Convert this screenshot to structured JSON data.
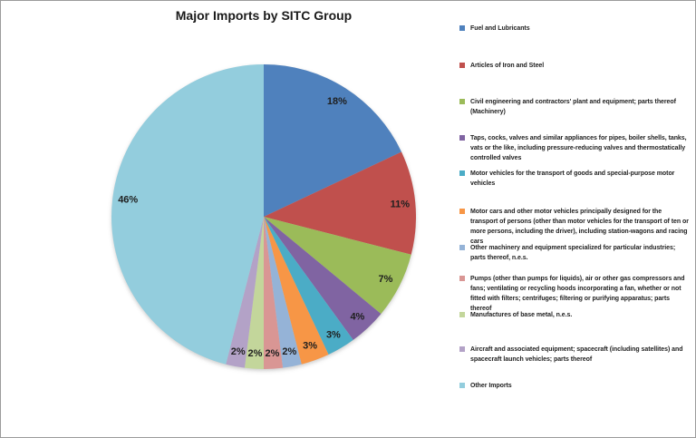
{
  "title": "Major Imports by SITC Group",
  "chart_data": {
    "type": "pie",
    "title": "Major Imports by SITC Group",
    "legend_position": "right",
    "value_label_style": "percent-inside-end",
    "slices": [
      {
        "label": "Fuel and Lubricants",
        "value": 18,
        "value_label": "18%",
        "color": "#4F81BD"
      },
      {
        "label": "Articles of Iron and Steel",
        "value": 11,
        "value_label": "11%",
        "color": "#C0504D"
      },
      {
        "label": "Civil engineering and contractors' plant and equipment; parts thereof (Machinery)",
        "value": 7,
        "value_label": "7%",
        "color": "#9BBB59"
      },
      {
        "label": "Taps, cocks, valves and similar appliances for pipes, boiler shells, tanks, vats or the like, including pressure-reducing valves and thermostatically controlled valves",
        "value": 4,
        "value_label": "4%",
        "color": "#8064A2"
      },
      {
        "label": "Motor vehicles for the transport of goods and special-purpose motor vehicles",
        "value": 3,
        "value_label": "3%",
        "color": "#4BACC6"
      },
      {
        "label": "Motor cars and other motor vehicles principally designed for the transport of persons (other than motor vehicles for the transport of ten or more persons, including the driver), including station-wagons and racing cars",
        "value": 3,
        "value_label": "3%",
        "color": "#F79646"
      },
      {
        "label": "Other machinery and equipment specialized for particular industries; parts thereof, n.e.s.",
        "value": 2,
        "value_label": "2%",
        "color": "#95B3D7"
      },
      {
        "label": "Pumps (other than pumps for liquids), air or other gas compressors and fans; ventilating or recycling hoods incorporating a fan, whether or not fitted with filters; centrifuges; filtering or purifying apparatus; parts thereof",
        "value": 2,
        "value_label": "2%",
        "color": "#D99694"
      },
      {
        "label": "Manufactures of base metal, n.e.s.",
        "value": 2,
        "value_label": "2%",
        "color": "#C3D69B"
      },
      {
        "label": "Aircraft and associated equipment; spacecraft (including satellites) and spacecraft launch vehicles; parts thereof",
        "value": 2,
        "value_label": "2%",
        "color": "#B3A2C7"
      },
      {
        "label": "Other Imports",
        "value": 46,
        "value_label": "46%",
        "color": "#93CDDD"
      }
    ]
  }
}
